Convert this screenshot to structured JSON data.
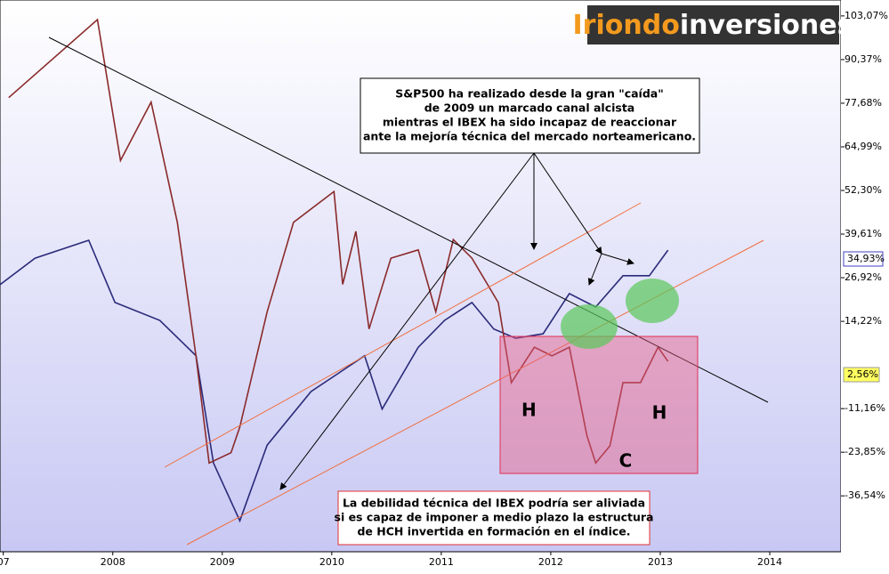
{
  "chart_data": {
    "type": "line",
    "logo": [
      "Iriondo",
      "inversiones"
    ],
    "note_top": [
      "S&P500 ha realizado desde la gran \"caída\"",
      "de 2009 un marcado canal alcista",
      "mientras el IBEX ha sido incapaz de reaccionar",
      "ante la mejoría técnica del mercado norteamericano."
    ],
    "note_bottom": [
      "La debilidad técnica del IBEX podría ser aliviada",
      "si es capaz de imponer a medio plazo la estructura",
      "de HCH invertida en formación en el índice."
    ],
    "pattern_labels": [
      "H",
      "C",
      "H"
    ],
    "last_labels": [
      "34,93%",
      "2,56%"
    ],
    "xlim": [
      2006.97,
      2014.65
    ],
    "xticks": [
      {
        "value": 2007,
        "label": "07"
      },
      2008,
      2009,
      2010,
      2011,
      2012,
      2013,
      2014
    ],
    "ylim": [
      -52.8,
      107.7
    ],
    "yticks": [
      {
        "value": 103.07,
        "label": "103,07%"
      },
      {
        "value": 90.37,
        "label": "90,37%"
      },
      {
        "value": 77.68,
        "label": "77,68%"
      },
      {
        "value": 64.99,
        "label": "64,99%"
      },
      {
        "value": 52.3,
        "label": "52,30%"
      },
      {
        "value": 39.61,
        "label": "39,61%"
      },
      {
        "value": 26.92,
        "label": "26,92%"
      },
      {
        "value": 14.22,
        "label": "14,22%"
      },
      {
        "value": -11.16,
        "label": "-11,16%"
      },
      {
        "value": -23.85,
        "label": "-23,85%"
      },
      {
        "value": -36.54,
        "label": "-36,54%"
      }
    ],
    "series": [
      {
        "color": "#2a2a7a",
        "x": [
          2006.97,
          2007.29,
          2007.78,
          2008.02,
          2008.43,
          2008.76,
          2008.92,
          2009.16,
          2009.41,
          2009.81,
          2010.3,
          2010.46,
          2010.79,
          2011.03,
          2011.28,
          2011.48,
          2011.68,
          2011.93,
          2012.17,
          2012.41,
          2012.66,
          2012.9,
          2013.07
        ],
        "values": [
          24.9,
          32.6,
          37.8,
          19.7,
          14.5,
          4.2,
          -27,
          -43.8,
          -21.8,
          -6.2,
          4.2,
          -11.3,
          6.7,
          14.5,
          19.7,
          12,
          9.3,
          10.6,
          22.3,
          18.4,
          27.5,
          27.5,
          34.93
        ]
      },
      {
        "color": "#8a2a2a",
        "x": [
          2007.05,
          2007.86,
          2008.07,
          2008.35,
          2008.59,
          2008.76,
          2008.88,
          2009.08,
          2009.16,
          2009.41,
          2009.65,
          2010.02,
          2010.1,
          2010.22,
          2010.34,
          2010.54,
          2010.79,
          2010.95,
          2011.11,
          2011.28,
          2011.52,
          2011.64,
          2011.85,
          2012.01,
          2012.17,
          2012.33,
          2012.41,
          2012.54,
          2012.66,
          2012.82,
          2012.98,
          2013.07
        ],
        "values": [
          79.3,
          102,
          61,
          78,
          43,
          4,
          -27,
          -24,
          -16.5,
          17,
          43,
          52,
          25,
          40.4,
          12,
          32.6,
          35,
          17,
          38,
          32.6,
          19.7,
          -3.6,
          6.7,
          4.2,
          6.7,
          -19,
          -27,
          -22,
          -3.6,
          -3.6,
          6.7,
          2.56
        ]
      }
    ]
  }
}
